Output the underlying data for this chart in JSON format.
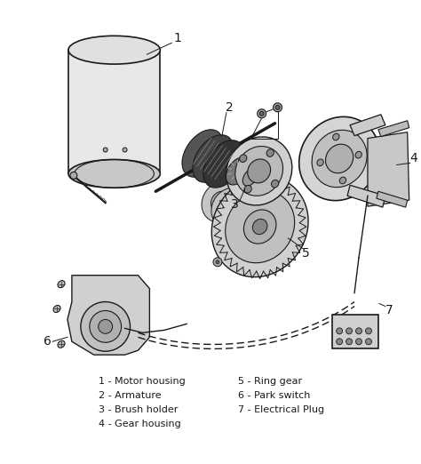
{
  "bg_color": "#ffffff",
  "fig_width": 4.74,
  "fig_height": 5.22,
  "dpi": 100,
  "legend_col1": [
    "1 - Motor housing",
    "2 - Armature",
    "3 - Brush holder",
    "4 - Gear housing"
  ],
  "legend_col2": [
    "5 - Ring gear",
    "6 - Park switch",
    "7 - Electrical Plug"
  ],
  "line_color": "#1a1a1a",
  "legend_fontsize": 8.0
}
